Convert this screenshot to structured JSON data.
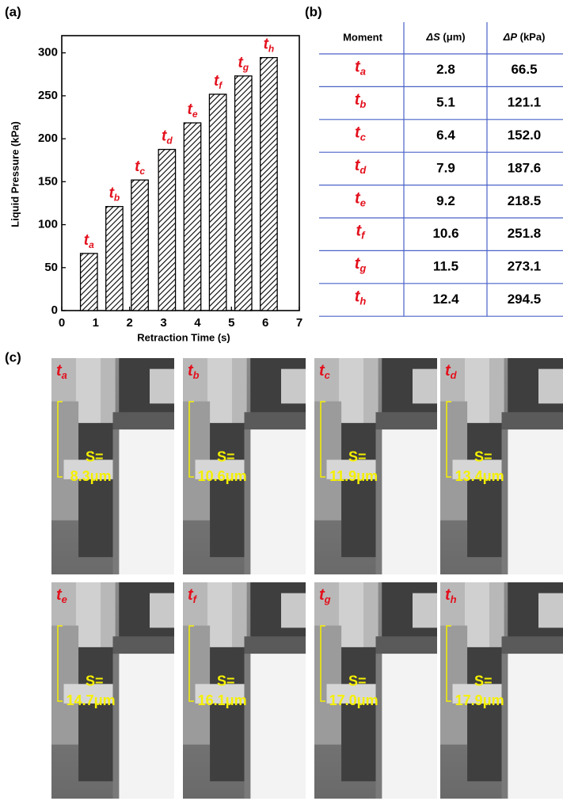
{
  "chart_data": {
    "type": "bar",
    "panel_label": "(a)",
    "x_label": "Retraction Time (s)",
    "y_label": "Liquid Pressure (kPa)",
    "x": [
      0.8,
      1.55,
      2.3,
      3.1,
      3.85,
      4.6,
      5.35,
      6.1
    ],
    "values": [
      66.5,
      121.1,
      152.0,
      187.6,
      218.5,
      251.8,
      273.1,
      294.5
    ],
    "bar_labels": [
      [
        "t",
        "a"
      ],
      [
        "t",
        "b"
      ],
      [
        "t",
        "c"
      ],
      [
        "t",
        "d"
      ],
      [
        "t",
        "e"
      ],
      [
        "t",
        "f"
      ],
      [
        "t",
        "g"
      ],
      [
        "t",
        "h"
      ]
    ],
    "color": "#000000",
    "bar_label_color": "#e3101c",
    "hatch": true,
    "xlim": [
      0,
      7
    ],
    "ylim": [
      0,
      320
    ],
    "xticks": [
      0,
      1,
      2,
      3,
      4,
      5,
      6,
      7
    ],
    "yticks": [
      0,
      50,
      100,
      150,
      200,
      250,
      300
    ]
  },
  "table": {
    "panel_label": "(b)",
    "header": [
      "Moment",
      [
        "ΔS",
        " (μm)"
      ],
      [
        "ΔP",
        " (kPa)"
      ]
    ],
    "rows": [
      [
        [
          "t",
          "a"
        ],
        "2.8",
        "66.5"
      ],
      [
        [
          "t",
          "b"
        ],
        "5.1",
        "121.1"
      ],
      [
        [
          "t",
          "c"
        ],
        "6.4",
        "152.0"
      ],
      [
        [
          "t",
          "d"
        ],
        "7.9",
        "187.6"
      ],
      [
        [
          "t",
          "e"
        ],
        "9.2",
        "218.5"
      ],
      [
        [
          "t",
          "f"
        ],
        "10.6",
        "251.8"
      ],
      [
        [
          "t",
          "g"
        ],
        "11.5",
        "273.1"
      ],
      [
        [
          "t",
          "h"
        ],
        "12.4",
        "294.5"
      ]
    ]
  },
  "images": {
    "panel_label": "(c)",
    "items": [
      {
        "moment": [
          "t",
          "a"
        ],
        "label": "S=",
        "value": "8.3μm"
      },
      {
        "moment": [
          "t",
          "b"
        ],
        "label": "S=",
        "value": "10.6μm"
      },
      {
        "moment": [
          "t",
          "c"
        ],
        "label": "S=",
        "value": "11.9μm"
      },
      {
        "moment": [
          "t",
          "d"
        ],
        "label": "S=",
        "value": "13.4μm"
      },
      {
        "moment": [
          "t",
          "e"
        ],
        "label": "S=",
        "value": "14.7μm"
      },
      {
        "moment": [
          "t",
          "f"
        ],
        "label": "S=",
        "value": "16.1μm"
      },
      {
        "moment": [
          "t",
          "g"
        ],
        "label": "S=",
        "value": "17.0μm"
      },
      {
        "moment": [
          "t",
          "h"
        ],
        "label": "S=",
        "value": "17.9μm"
      }
    ]
  }
}
